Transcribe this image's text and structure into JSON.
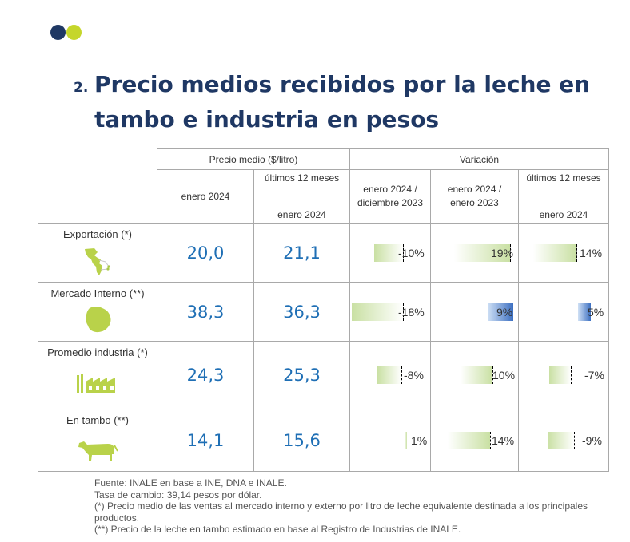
{
  "title": {
    "number": "2.",
    "text": "Precio medios recibidos por la leche en tambo e industria en pesos"
  },
  "table": {
    "group_headers": [
      "Precio medio ($/litro)",
      "Variación"
    ],
    "columns": [
      {
        "line1": "enero 2024",
        "line2": ""
      },
      {
        "line1": "últimos 12 meses",
        "line2": "enero 2024"
      },
      {
        "line1": "enero 2024 /",
        "line2": "diciembre 2023"
      },
      {
        "line1": "enero 2024 /",
        "line2": "enero 2023"
      },
      {
        "line1": "últimos 12 meses",
        "line2": "enero 2024"
      }
    ],
    "rows": [
      {
        "label": "Exportación (*)",
        "icon": "americas-map-icon",
        "price_jan": "20,0",
        "price_12m": "21,1",
        "var": [
          {
            "text": "-10%",
            "value": -10
          },
          {
            "text": "19%",
            "value": 19
          },
          {
            "text": "14%",
            "value": 14
          }
        ]
      },
      {
        "label": "Mercado Interno (**)",
        "icon": "uruguay-map-icon",
        "price_jan": "38,3",
        "price_12m": "36,3",
        "var": [
          {
            "text": "-18%",
            "value": -18
          },
          {
            "text": "9%",
            "value": 9
          },
          {
            "text": "5%",
            "value": 5
          }
        ]
      },
      {
        "label": "Promedio industria (*)",
        "icon": "factory-icon",
        "price_jan": "24,3",
        "price_12m": "25,3",
        "var": [
          {
            "text": "-8%",
            "value": -8
          },
          {
            "text": "10%",
            "value": 10
          },
          {
            "text": "-7%",
            "value": -7
          }
        ]
      },
      {
        "label": "En tambo (**)",
        "icon": "cow-icon",
        "price_jan": "14,1",
        "price_12m": "15,6",
        "var": [
          {
            "text": "1%",
            "value": 1
          },
          {
            "text": "14%",
            "value": 14
          },
          {
            "text": "-9%",
            "value": -9
          }
        ]
      }
    ]
  },
  "notes": [
    "Fuente: INALE en base a INE, DNA e INALE.",
    "Tasa de cambio: 39,14 pesos por dólar.",
    "(*) Precio medio de las ventas al mercado interno y externo por litro de leche equivalente destinada a los principales productos.",
    "(**) Precio de la leche en tambo estimado en base al Registro de Industrias de INALE."
  ],
  "colors": {
    "navy": "#1f3864",
    "lime": "#c5d62b",
    "value_blue": "#1f6fb5",
    "bar_green": "#c9e0a3",
    "bar_blue": "#3c6fc1"
  }
}
